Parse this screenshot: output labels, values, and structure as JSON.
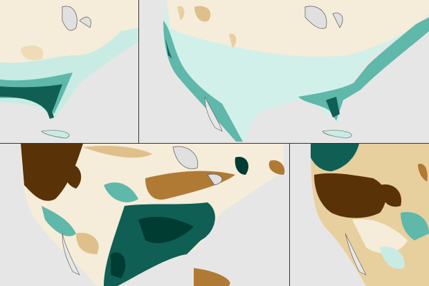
{
  "colors": {
    "background_water": "#e6e6e6",
    "neutral": "#f5ecd9",
    "light_teal": "#c8ece4",
    "teal": "#5fb8aa",
    "dark_teal": "#0f5f55",
    "darkest_teal": "#013c33",
    "light_brown": "#dfc08a",
    "brown": "#b07a35",
    "dark_brown": "#5a3208",
    "coastline": "#555555",
    "lakes": "#e0e0e0"
  },
  "panels": [
    {
      "name": "top-left-map"
    },
    {
      "name": "top-right-map"
    },
    {
      "name": "bottom-left-map"
    },
    {
      "name": "bottom-right-map"
    }
  ]
}
